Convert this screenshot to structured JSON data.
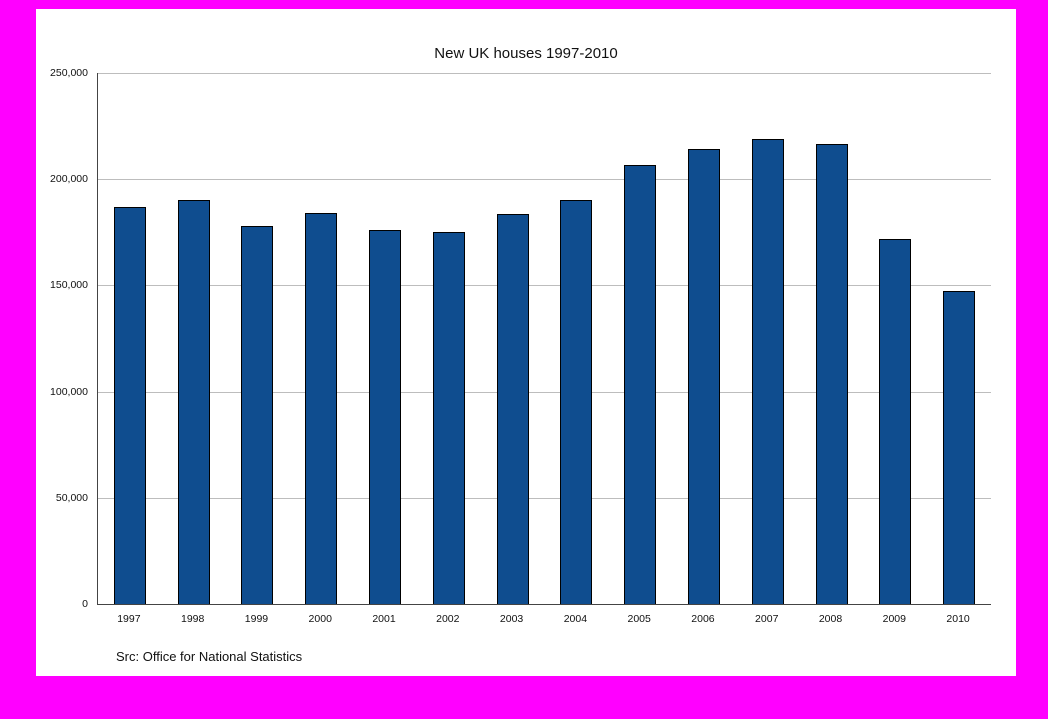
{
  "page": {
    "background_color": "#ff00ff",
    "canvas_color": "#ffffff"
  },
  "chart_data": {
    "type": "bar",
    "title": "New UK houses 1997-2010",
    "categories": [
      "1997",
      "1998",
      "1999",
      "2000",
      "2001",
      "2002",
      "2003",
      "2004",
      "2005",
      "2006",
      "2007",
      "2008",
      "2009",
      "2010"
    ],
    "values": [
      187000,
      190000,
      178000,
      184000,
      176000,
      175000,
      183500,
      190000,
      206500,
      214000,
      219000,
      216500,
      172000,
      147500
    ],
    "xlabel": "",
    "ylabel": "",
    "ylim": [
      0,
      250000
    ],
    "ytick_interval": 50000,
    "ytick_labels": [
      "0",
      "50,000",
      "100,000",
      "150,000",
      "200,000",
      "250,000"
    ],
    "grid": true,
    "legend": "none",
    "bar_color": "#0f4d8f",
    "bar_border_color": "#000000",
    "source_note": "Src: Office for National Statistics"
  }
}
